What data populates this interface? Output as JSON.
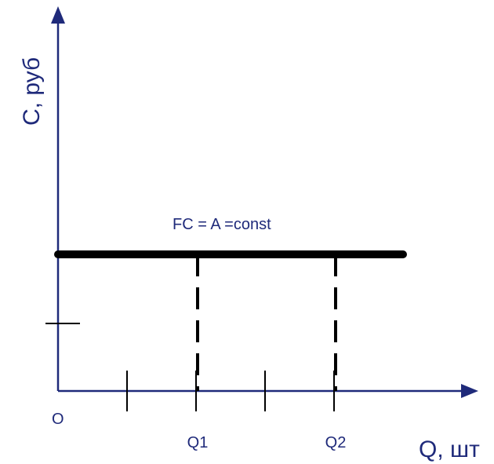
{
  "chart_data": {
    "type": "line",
    "ylabel": "C, руб",
    "xlabel": "Q, шт",
    "origin_label": "O",
    "xlim": [
      0,
      6
    ],
    "ylim": [
      0,
      6
    ],
    "x_ticks": [
      1,
      2,
      3,
      4
    ],
    "x_tick_labels": [
      "",
      "Q1",
      "",
      "Q2"
    ],
    "y_ticks": [
      1
    ],
    "series": [
      {
        "x": [
          0,
          5
        ],
        "y": [
          2,
          2
        ]
      }
    ],
    "markers": [
      {
        "x": 2,
        "label": "Q1"
      },
      {
        "x": 4,
        "label": "Q2"
      }
    ],
    "annotation": "FC = A =const",
    "colors": {
      "axis": "#1f2a7a",
      "line": "#000000",
      "text": "#1f2a7a"
    },
    "grid": false
  }
}
